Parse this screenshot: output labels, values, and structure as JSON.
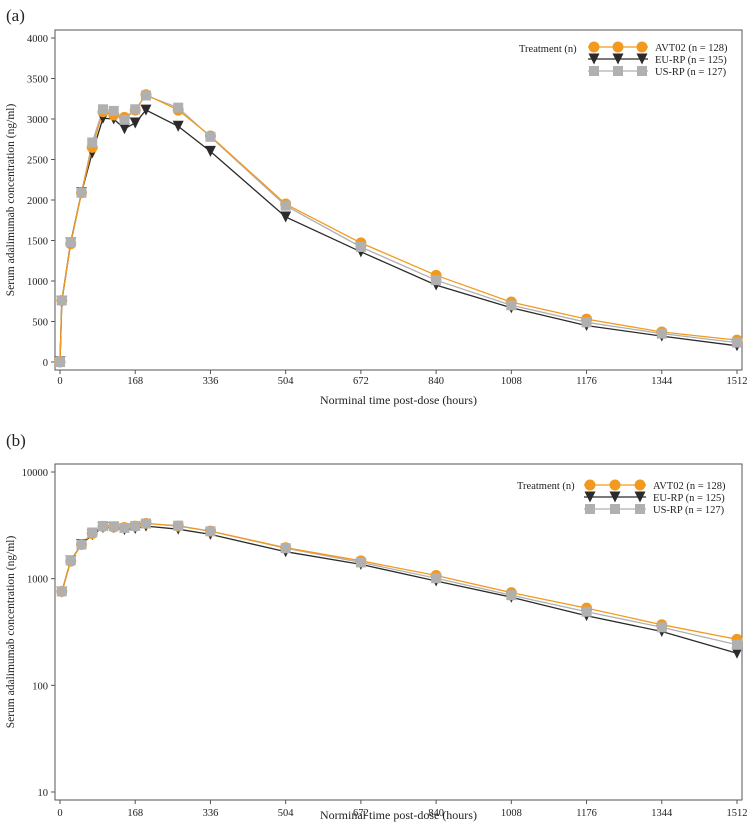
{
  "panels": [
    {
      "label": "(a)",
      "scale": "linear",
      "y_ticks": [
        "0",
        "500",
        "1000",
        "1500",
        "2000",
        "2500",
        "3000",
        "3500",
        "4000"
      ]
    },
    {
      "label": "(b)",
      "scale": "log",
      "y_ticks": [
        "10",
        "100",
        "1000",
        "10000"
      ]
    }
  ],
  "colors": {
    "AVT02": "#f29a1f",
    "EU-RP": "#2b2b2b",
    "US-RP": "#b0b0b0"
  },
  "chart_data": [
    {
      "type": "line",
      "panel": "a",
      "title": "",
      "xlabel": "Norminal time post-dose (hours)",
      "ylabel": "Serum adalimumab concentration (ng/ml)",
      "xlim": [
        0,
        1512
      ],
      "ylim": [
        0,
        4000
      ],
      "yscale": "linear",
      "x_ticks": [
        0,
        168,
        336,
        504,
        672,
        840,
        1008,
        1176,
        1344,
        1512
      ],
      "x_tick_labels": [
        "0",
        "168",
        "336",
        "504",
        "672",
        "840",
        "1008",
        "1176",
        "1344",
        "1512"
      ],
      "legend": {
        "title": "Treatment (n)",
        "position": "top-right"
      },
      "x": [
        0,
        4,
        24,
        48,
        72,
        96,
        120,
        144,
        168,
        192,
        264,
        336,
        504,
        672,
        840,
        1008,
        1176,
        1344,
        1512
      ],
      "series": [
        {
          "name": "AVT02",
          "n": "128",
          "label": "AVT02 (n = 128)",
          "marker": "circle",
          "values": [
            0,
            760,
            1460,
            2090,
            2650,
            3090,
            3050,
            3020,
            3110,
            3300,
            3110,
            2790,
            1950,
            1470,
            1070,
            740,
            530,
            370,
            270
          ]
        },
        {
          "name": "EU-RP",
          "n": "125",
          "label": "EU-RP (n = 125)",
          "marker": "triangle-down",
          "values": [
            0,
            750,
            1470,
            2090,
            2580,
            3010,
            3000,
            2880,
            2950,
            3110,
            2910,
            2600,
            1790,
            1360,
            950,
            670,
            450,
            320,
            200
          ]
        },
        {
          "name": "US-RP",
          "n": "127",
          "label": "US-RP (n = 127)",
          "marker": "square",
          "values": [
            0,
            760,
            1480,
            2090,
            2710,
            3120,
            3100,
            2990,
            3120,
            3290,
            3140,
            2780,
            1930,
            1420,
            1010,
            700,
            490,
            350,
            240
          ]
        }
      ]
    },
    {
      "type": "line",
      "panel": "b",
      "title": "",
      "xlabel": "Norminal time post-dose (hours)",
      "ylabel": "Serum adalimumab concentration (ng/ml)",
      "xlim": [
        0,
        1512
      ],
      "ylim": [
        10,
        10000
      ],
      "yscale": "log",
      "x_ticks": [
        0,
        168,
        336,
        504,
        672,
        840,
        1008,
        1176,
        1344,
        1512
      ],
      "x_tick_labels": [
        "0",
        "168",
        "336",
        "504",
        "672",
        "840",
        "1008",
        "1176",
        "1344",
        "1512"
      ],
      "legend": {
        "title": "Treatment (n)",
        "position": "top-right"
      },
      "x": [
        4,
        24,
        48,
        72,
        96,
        120,
        144,
        168,
        192,
        264,
        336,
        504,
        672,
        840,
        1008,
        1176,
        1344,
        1512
      ],
      "series": [
        {
          "name": "AVT02",
          "n": "128",
          "label": "AVT02 (n = 128)",
          "marker": "circle",
          "values": [
            760,
            1460,
            2090,
            2650,
            3090,
            3050,
            3020,
            3110,
            3300,
            3110,
            2790,
            1950,
            1470,
            1070,
            740,
            530,
            370,
            270
          ]
        },
        {
          "name": "EU-RP",
          "n": "125",
          "label": "EU-RP (n = 125)",
          "marker": "triangle-down",
          "values": [
            750,
            1470,
            2090,
            2580,
            3010,
            3000,
            2880,
            2950,
            3110,
            2910,
            2600,
            1790,
            1360,
            950,
            670,
            450,
            320,
            200
          ]
        },
        {
          "name": "US-RP",
          "n": "127",
          "label": "US-RP (n = 127)",
          "marker": "square",
          "values": [
            760,
            1480,
            2090,
            2710,
            3120,
            3100,
            2990,
            3120,
            3290,
            3140,
            2780,
            1930,
            1420,
            1010,
            700,
            490,
            350,
            240
          ]
        }
      ]
    }
  ]
}
